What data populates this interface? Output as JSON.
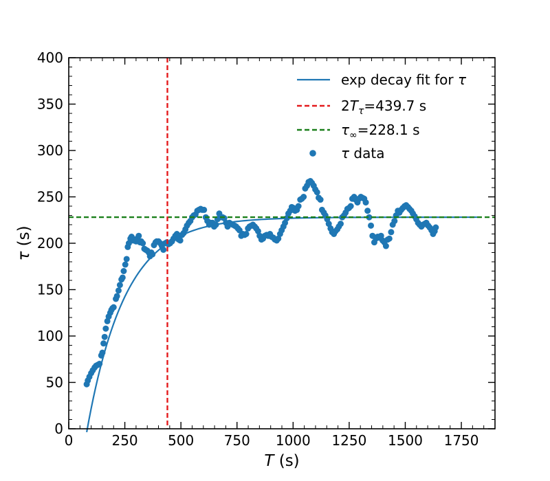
{
  "chart_data": {
    "type": "scatter",
    "xlabel_sym": "T",
    "xlabel_unit": " (s)",
    "ylabel_sym": "τ",
    "ylabel_unit": " (s)",
    "xlim": [
      0,
      1900
    ],
    "ylim": [
      0,
      400
    ],
    "xticks": [
      0,
      250,
      500,
      750,
      1000,
      1250,
      1500,
      1750
    ],
    "yticks": [
      0,
      50,
      100,
      150,
      200,
      250,
      300,
      350,
      400
    ],
    "x_minor_step": 50,
    "y_minor_step": 10,
    "grid": false,
    "legend_position": "top-right",
    "colors": {
      "data": "#1f77b4",
      "fit": "#1f77b4",
      "vline": "#e41a1c",
      "hline": "#1a7f1a"
    },
    "vline": {
      "x": 439.7
    },
    "hline": {
      "y": 228.1
    },
    "fit": {
      "tau_inf": 228.1,
      "amplitude": 370,
      "rate": 0.00585,
      "x_start": 80,
      "x_end": 1820
    },
    "legend": [
      {
        "kind": "fit",
        "label": "exp decay fit for ",
        "sym": "τ",
        "sub": "",
        "rest": ""
      },
      {
        "kind": "vline",
        "label": "2",
        "sym": "T",
        "sub": "τ",
        "rest": "=439.7 s"
      },
      {
        "kind": "hline",
        "label": "",
        "sym": "τ",
        "sub": "∞",
        "rest": "=228.1 s"
      },
      {
        "kind": "data",
        "label": "",
        "sym": "τ",
        "sub": "",
        "rest": " data"
      }
    ],
    "points": [
      [
        80,
        48
      ],
      [
        85,
        52
      ],
      [
        92,
        56
      ],
      [
        100,
        60
      ],
      [
        107,
        63
      ],
      [
        115,
        66
      ],
      [
        122,
        68
      ],
      [
        130,
        69
      ],
      [
        137,
        70
      ],
      [
        145,
        79
      ],
      [
        150,
        82
      ],
      [
        155,
        92
      ],
      [
        160,
        99
      ],
      [
        165,
        108
      ],
      [
        172,
        116
      ],
      [
        178,
        121
      ],
      [
        185,
        125
      ],
      [
        190,
        128
      ],
      [
        195,
        130
      ],
      [
        200,
        131
      ],
      [
        210,
        140
      ],
      [
        215,
        143
      ],
      [
        222,
        149
      ],
      [
        228,
        155
      ],
      [
        235,
        161
      ],
      [
        240,
        163
      ],
      [
        245,
        170
      ],
      [
        252,
        177
      ],
      [
        258,
        183
      ],
      [
        263,
        196
      ],
      [
        268,
        200
      ],
      [
        275,
        205
      ],
      [
        280,
        207
      ],
      [
        287,
        203
      ],
      [
        293,
        204
      ],
      [
        300,
        202
      ],
      [
        305,
        205
      ],
      [
        312,
        208
      ],
      [
        318,
        201
      ],
      [
        323,
        202
      ],
      [
        330,
        200
      ],
      [
        337,
        194
      ],
      [
        343,
        193
      ],
      [
        350,
        192
      ],
      [
        357,
        190
      ],
      [
        362,
        186
      ],
      [
        368,
        190
      ],
      [
        373,
        188
      ],
      [
        380,
        198
      ],
      [
        387,
        201
      ],
      [
        392,
        202
      ],
      [
        400,
        202
      ],
      [
        408,
        200
      ],
      [
        415,
        197
      ],
      [
        422,
        193
      ],
      [
        430,
        200
      ],
      [
        437,
        201
      ],
      [
        445,
        199
      ],
      [
        452,
        200
      ],
      [
        460,
        202
      ],
      [
        467,
        205
      ],
      [
        475,
        208
      ],
      [
        482,
        210
      ],
      [
        490,
        204
      ],
      [
        497,
        203
      ],
      [
        505,
        209
      ],
      [
        512,
        211
      ],
      [
        520,
        215
      ],
      [
        527,
        219
      ],
      [
        535,
        222
      ],
      [
        542,
        224
      ],
      [
        550,
        228
      ],
      [
        557,
        230
      ],
      [
        565,
        231
      ],
      [
        573,
        235
      ],
      [
        580,
        236
      ],
      [
        588,
        237
      ],
      [
        595,
        236
      ],
      [
        603,
        236
      ],
      [
        611,
        228
      ],
      [
        618,
        224
      ],
      [
        626,
        220
      ],
      [
        633,
        222
      ],
      [
        641,
        222
      ],
      [
        648,
        218
      ],
      [
        656,
        220
      ],
      [
        663,
        226
      ],
      [
        671,
        232
      ],
      [
        678,
        228
      ],
      [
        686,
        228
      ],
      [
        693,
        227
      ],
      [
        701,
        222
      ],
      [
        708,
        218
      ],
      [
        716,
        222
      ],
      [
        723,
        221
      ],
      [
        731,
        220
      ],
      [
        739,
        219
      ],
      [
        746,
        218
      ],
      [
        754,
        216
      ],
      [
        761,
        214
      ],
      [
        769,
        208
      ],
      [
        776,
        210
      ],
      [
        784,
        209
      ],
      [
        791,
        210
      ],
      [
        799,
        216
      ],
      [
        806,
        218
      ],
      [
        814,
        219
      ],
      [
        821,
        220
      ],
      [
        829,
        218
      ],
      [
        836,
        216
      ],
      [
        844,
        213
      ],
      [
        851,
        208
      ],
      [
        859,
        204
      ],
      [
        866,
        205
      ],
      [
        874,
        208
      ],
      [
        882,
        209
      ],
      [
        889,
        208
      ],
      [
        897,
        210
      ],
      [
        904,
        207
      ],
      [
        912,
        206
      ],
      [
        919,
        204
      ],
      [
        927,
        203
      ],
      [
        934,
        205
      ],
      [
        942,
        210
      ],
      [
        949,
        214
      ],
      [
        957,
        218
      ],
      [
        964,
        222
      ],
      [
        972,
        227
      ],
      [
        979,
        232
      ],
      [
        987,
        235
      ],
      [
        994,
        239
      ],
      [
        1002,
        238
      ],
      [
        1009,
        235
      ],
      [
        1017,
        236
      ],
      [
        1024,
        240
      ],
      [
        1032,
        247
      ],
      [
        1039,
        248
      ],
      [
        1047,
        250
      ],
      [
        1054,
        259
      ],
      [
        1062,
        262
      ],
      [
        1069,
        266
      ],
      [
        1077,
        267
      ],
      [
        1084,
        265
      ],
      [
        1092,
        262
      ],
      [
        1099,
        258
      ],
      [
        1107,
        255
      ],
      [
        1114,
        249
      ],
      [
        1122,
        247
      ],
      [
        1129,
        236
      ],
      [
        1137,
        233
      ],
      [
        1144,
        230
      ],
      [
        1152,
        226
      ],
      [
        1159,
        221
      ],
      [
        1167,
        216
      ],
      [
        1174,
        212
      ],
      [
        1182,
        210
      ],
      [
        1189,
        213
      ],
      [
        1197,
        215
      ],
      [
        1204,
        218
      ],
      [
        1212,
        221
      ],
      [
        1219,
        228
      ],
      [
        1227,
        230
      ],
      [
        1234,
        233
      ],
      [
        1242,
        237
      ],
      [
        1249,
        238
      ],
      [
        1257,
        240
      ],
      [
        1264,
        248
      ],
      [
        1272,
        250
      ],
      [
        1279,
        247
      ],
      [
        1287,
        244
      ],
      [
        1294,
        248
      ],
      [
        1302,
        250
      ],
      [
        1309,
        249
      ],
      [
        1317,
        248
      ],
      [
        1324,
        244
      ],
      [
        1332,
        235
      ],
      [
        1339,
        228
      ],
      [
        1347,
        219
      ],
      [
        1354,
        208
      ],
      [
        1362,
        201
      ],
      [
        1369,
        205
      ],
      [
        1377,
        207
      ],
      [
        1384,
        206
      ],
      [
        1392,
        208
      ],
      [
        1399,
        203
      ],
      [
        1407,
        201
      ],
      [
        1414,
        197
      ],
      [
        1422,
        204
      ],
      [
        1429,
        205
      ],
      [
        1437,
        212
      ],
      [
        1444,
        220
      ],
      [
        1452,
        224
      ],
      [
        1459,
        230
      ],
      [
        1467,
        235
      ],
      [
        1474,
        233
      ],
      [
        1482,
        236
      ],
      [
        1489,
        238
      ],
      [
        1497,
        240
      ],
      [
        1504,
        241
      ],
      [
        1512,
        239
      ],
      [
        1519,
        237
      ],
      [
        1527,
        235
      ],
      [
        1534,
        232
      ],
      [
        1542,
        229
      ],
      [
        1549,
        226
      ],
      [
        1557,
        222
      ],
      [
        1564,
        220
      ],
      [
        1572,
        218
      ],
      [
        1579,
        220
      ],
      [
        1587,
        221
      ],
      [
        1594,
        222
      ],
      [
        1602,
        219
      ],
      [
        1609,
        217
      ],
      [
        1617,
        214
      ],
      [
        1624,
        210
      ],
      [
        1631,
        213
      ],
      [
        1636,
        217
      ]
    ]
  }
}
